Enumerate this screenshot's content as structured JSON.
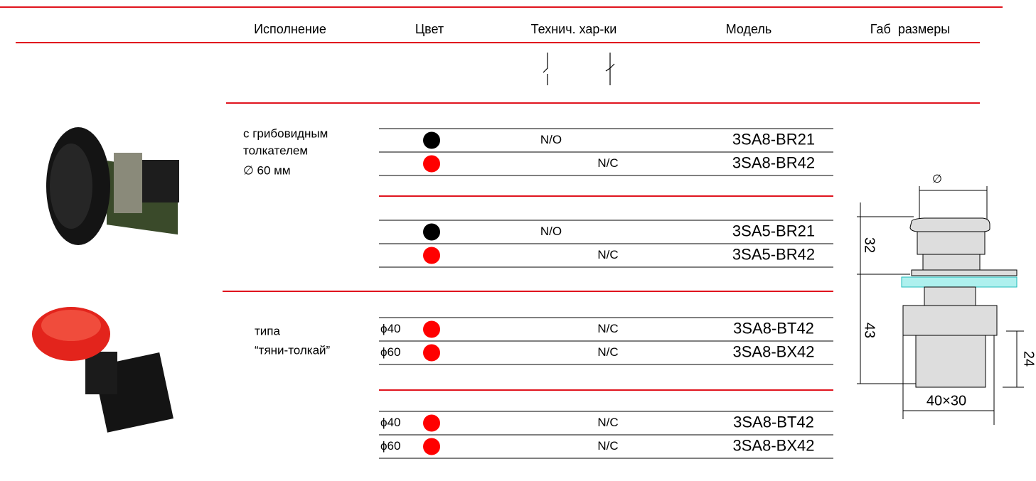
{
  "header": {
    "columns": [
      "Исполнение",
      "Цвет",
      "Технич. хар-ки",
      "Модель",
      "Габ  размеры"
    ]
  },
  "groups": [
    {
      "description": [
        "с грибовидным",
        "толкателем",
        "∅ 60 мм"
      ],
      "blocks": [
        {
          "rows": [
            {
              "color": "#000000",
              "contact": "N/O",
              "model": "3SA8-BR21"
            },
            {
              "color": "#ff0000",
              "contact": "N/C",
              "model": "3SA8-BR42"
            }
          ]
        },
        {
          "rows": [
            {
              "color": "#000000",
              "contact": "N/O",
              "model": "3SA5-BR21"
            },
            {
              "color": "#ff0000",
              "contact": "N/C",
              "model": "3SA5-BR42"
            }
          ]
        }
      ]
    },
    {
      "description": [
        "типа",
        "“тяни-толкай”"
      ],
      "blocks": [
        {
          "rows": [
            {
              "size": "ϕ40",
              "color": "#ff0000",
              "contact": "N/C",
              "model": "3SA8-BT42"
            },
            {
              "size": "ϕ60",
              "color": "#ff0000",
              "contact": "N/C",
              "model": "3SA8-BX42"
            }
          ]
        },
        {
          "rows": [
            {
              "size": "ϕ40",
              "color": "#ff0000",
              "contact": "N/C",
              "model": "3SA8-BT42"
            },
            {
              "size": "ϕ60",
              "color": "#ff0000",
              "contact": "N/C",
              "model": "3SA8-BX42"
            }
          ]
        }
      ]
    }
  ],
  "dimensions": {
    "diameter": "∅",
    "upper_height": "32",
    "lower_height": "43",
    "body_height": "24",
    "footprint": "40×30"
  }
}
